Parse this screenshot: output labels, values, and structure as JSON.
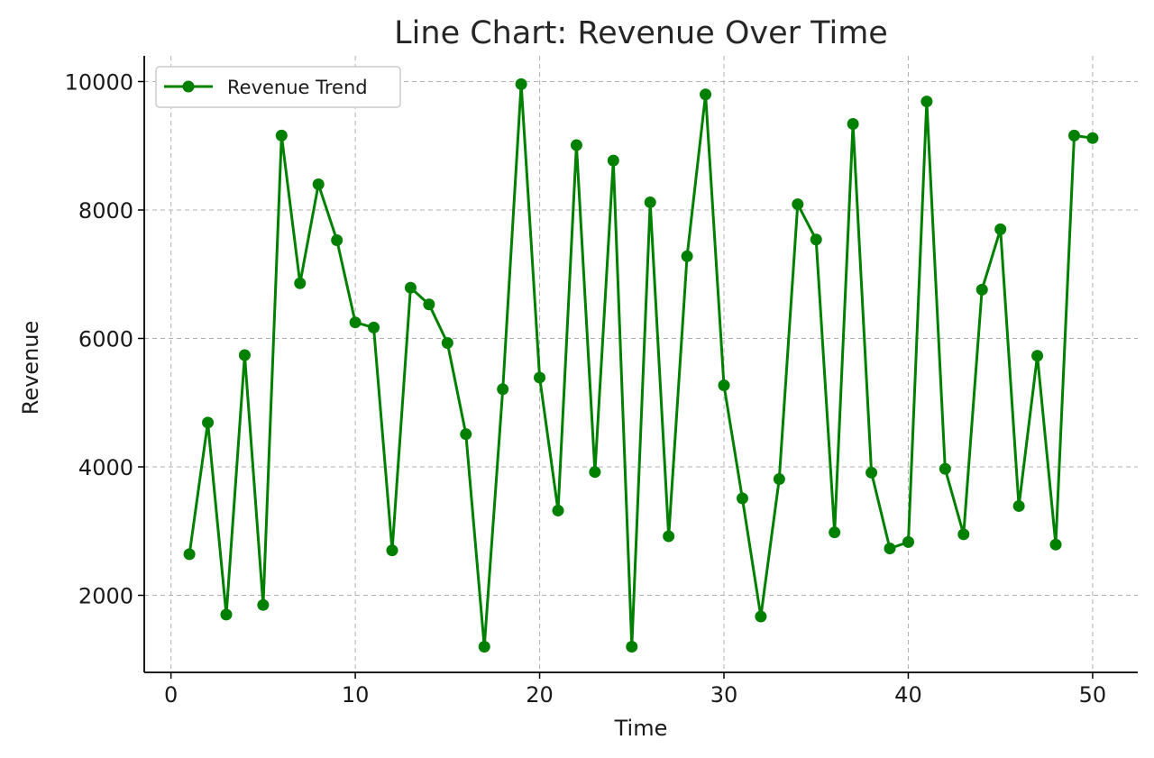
{
  "chart_data": {
    "type": "line",
    "title": "Line Chart: Revenue Over Time",
    "xlabel": "Time",
    "ylabel": "Revenue",
    "xlim": [
      -1.45,
      52.45
    ],
    "ylim": [
      800,
      10400
    ],
    "xticks": [
      0,
      10,
      20,
      30,
      40,
      50
    ],
    "yticks": [
      2000,
      4000,
      6000,
      8000,
      10000
    ],
    "grid": true,
    "legend_position": "top-left",
    "series": [
      {
        "name": "Revenue Trend",
        "color": "#008000",
        "marker": "circle",
        "x": [
          1,
          2,
          3,
          4,
          5,
          6,
          7,
          8,
          9,
          10,
          11,
          12,
          13,
          14,
          15,
          16,
          17,
          18,
          19,
          20,
          21,
          22,
          23,
          24,
          25,
          26,
          27,
          28,
          29,
          30,
          31,
          32,
          33,
          34,
          35,
          36,
          37,
          38,
          39,
          40,
          41,
          42,
          43,
          44,
          45,
          46,
          47,
          48,
          49,
          50
        ],
        "values": [
          2640,
          4690,
          1700,
          5740,
          1850,
          9160,
          6860,
          8400,
          7530,
          6250,
          6170,
          2700,
          6790,
          6530,
          5930,
          4510,
          1200,
          5210,
          9960,
          5390,
          3320,
          9010,
          3920,
          8770,
          1200,
          8120,
          2920,
          7280,
          9800,
          5270,
          3510,
          1670,
          3810,
          8090,
          7540,
          2980,
          9340,
          3910,
          2730,
          2830,
          9690,
          3970,
          2950,
          6760,
          7700,
          3390,
          5730,
          2790,
          9160,
          9120
        ]
      }
    ]
  }
}
